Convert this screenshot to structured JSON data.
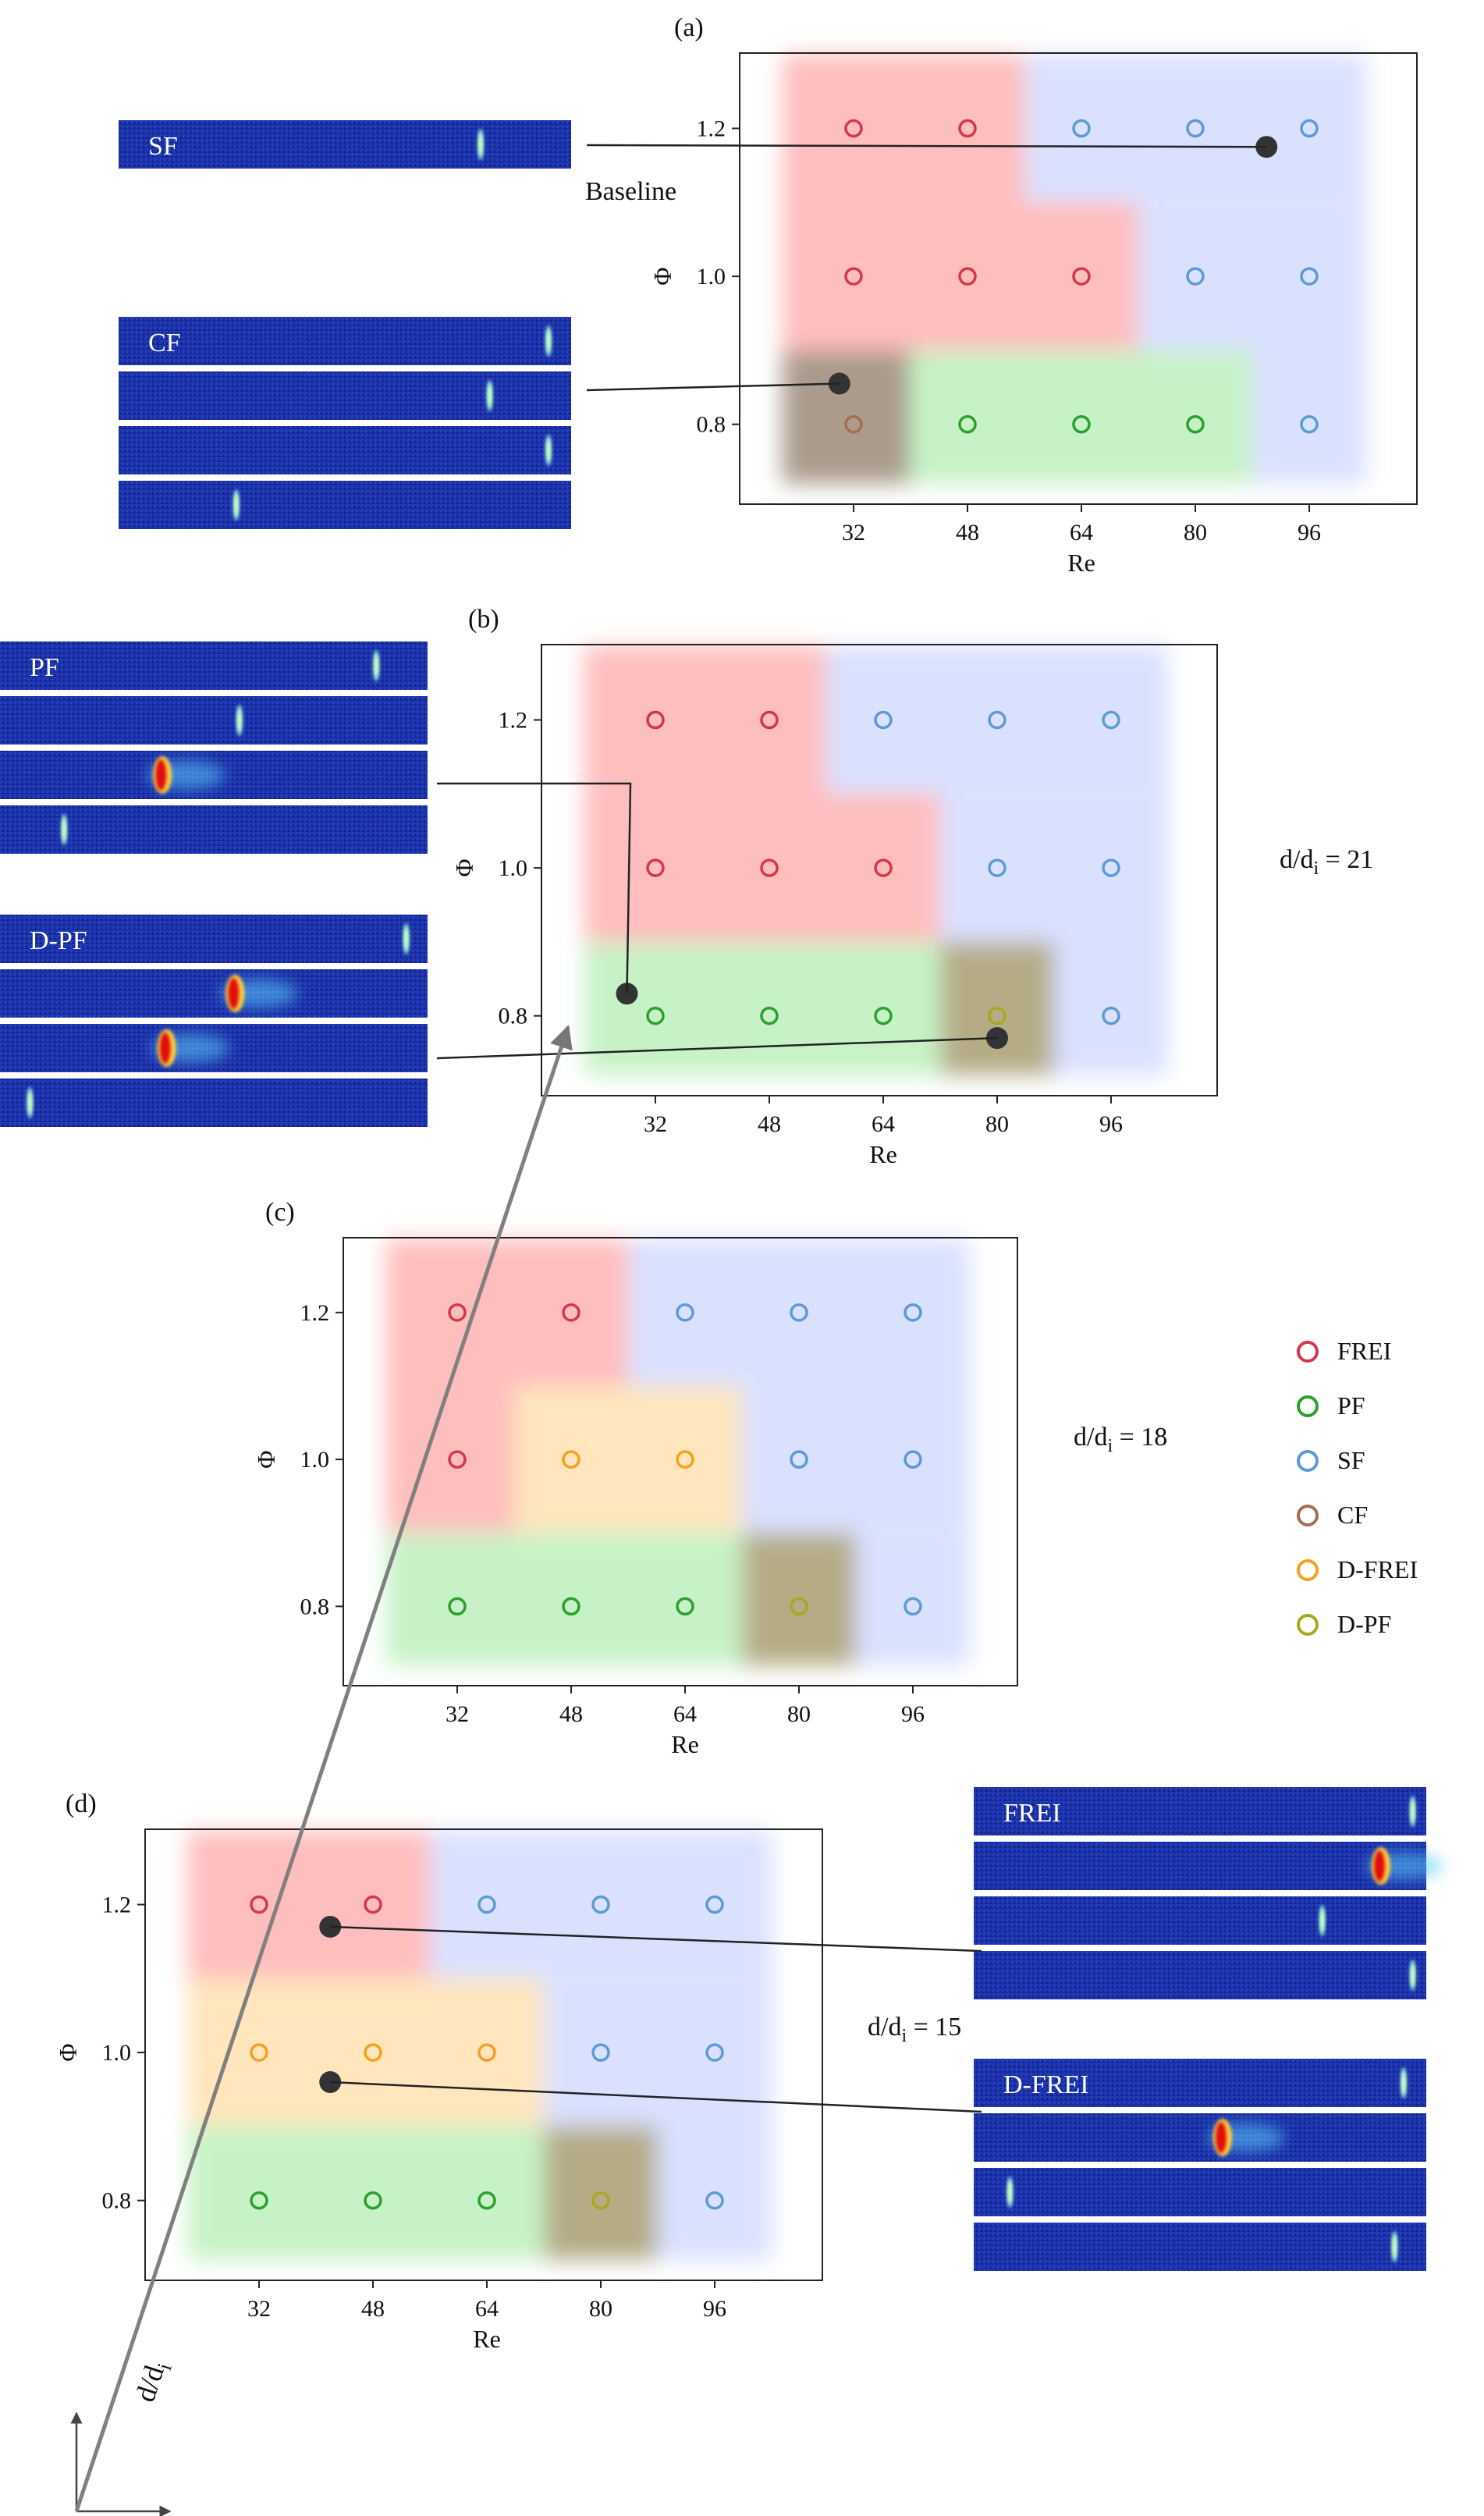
{
  "colors": {
    "FREI": "#d6364b",
    "PF": "#2ca02c",
    "SF": "#5b9bd5",
    "CF": "#a66d50",
    "D-FREI": "#f5a020",
    "D-PF": "#a8a820",
    "region_FREI": "#ffb3b3",
    "region_PF": "#bdf0bd",
    "region_SF": "#d4dcff",
    "region_CF": "#9c8a78",
    "region_D-FREI": "#ffe2b0",
    "region_D-PF": "#a89d72",
    "marker": "#333333",
    "stream_bg": "#1a2fa5"
  },
  "legend": {
    "items": [
      {
        "key": "FREI",
        "label": "FREI"
      },
      {
        "key": "PF",
        "label": "PF"
      },
      {
        "key": "SF",
        "label": "SF"
      },
      {
        "key": "CF",
        "label": "CF"
      },
      {
        "key": "D-FREI",
        "label": "D-FREI"
      },
      {
        "key": "D-PF",
        "label": "D-PF"
      }
    ]
  },
  "annotations": {
    "baseline": "Baseline",
    "axis_arrow_label": "d/d",
    "axis_arrow_subscript": "i"
  },
  "chart_data": [
    {
      "panel": "(a)",
      "type": "scatter",
      "xlabel": "Re",
      "ylabel": "Φ",
      "x_ticks": [
        "32",
        "48",
        "64",
        "80",
        "96"
      ],
      "y_ticks": [
        "0.8",
        "1.0",
        "1.2"
      ],
      "ratio_label": "",
      "points": [
        {
          "re": 32,
          "phi": 1.2,
          "regime": "FREI"
        },
        {
          "re": 48,
          "phi": 1.2,
          "regime": "FREI"
        },
        {
          "re": 64,
          "phi": 1.2,
          "regime": "SF"
        },
        {
          "re": 80,
          "phi": 1.2,
          "regime": "SF"
        },
        {
          "re": 96,
          "phi": 1.2,
          "regime": "SF"
        },
        {
          "re": 32,
          "phi": 1.0,
          "regime": "FREI"
        },
        {
          "re": 48,
          "phi": 1.0,
          "regime": "FREI"
        },
        {
          "re": 64,
          "phi": 1.0,
          "regime": "FREI"
        },
        {
          "re": 80,
          "phi": 1.0,
          "regime": "SF"
        },
        {
          "re": 96,
          "phi": 1.0,
          "regime": "SF"
        },
        {
          "re": 32,
          "phi": 0.8,
          "regime": "CF"
        },
        {
          "re": 48,
          "phi": 0.8,
          "regime": "PF"
        },
        {
          "re": 64,
          "phi": 0.8,
          "regime": "PF"
        },
        {
          "re": 80,
          "phi": 0.8,
          "regime": "PF"
        },
        {
          "re": 96,
          "phi": 0.8,
          "regime": "SF"
        }
      ],
      "regions": [
        {
          "regime": "FREI",
          "re": [
            22,
            56
          ],
          "phi": [
            1.1,
            1.3
          ]
        },
        {
          "regime": "FREI",
          "re": [
            22,
            72
          ],
          "phi": [
            0.9,
            1.1
          ]
        },
        {
          "regime": "SF",
          "re": [
            56,
            104
          ],
          "phi": [
            1.1,
            1.3
          ]
        },
        {
          "regime": "SF",
          "re": [
            72,
            104
          ],
          "phi": [
            0.9,
            1.1
          ]
        },
        {
          "regime": "SF",
          "re": [
            88,
            104
          ],
          "phi": [
            0.72,
            0.9
          ]
        },
        {
          "regime": "CF",
          "re": [
            22,
            40
          ],
          "phi": [
            0.72,
            0.9
          ]
        },
        {
          "regime": "PF",
          "re": [
            40,
            88
          ],
          "phi": [
            0.72,
            0.9
          ]
        }
      ],
      "markers": [
        {
          "re": 90,
          "phi": 1.175
        },
        {
          "re": 30,
          "phi": 0.855
        }
      ]
    },
    {
      "panel": "(b)",
      "type": "scatter",
      "xlabel": "Re",
      "ylabel": "Φ",
      "x_ticks": [
        "32",
        "48",
        "64",
        "80",
        "96"
      ],
      "y_ticks": [
        "0.8",
        "1.0",
        "1.2"
      ],
      "ratio_label": "d/d",
      "ratio_sub": "i",
      "ratio_value": " = 21",
      "points": [
        {
          "re": 32,
          "phi": 1.2,
          "regime": "FREI"
        },
        {
          "re": 48,
          "phi": 1.2,
          "regime": "FREI"
        },
        {
          "re": 64,
          "phi": 1.2,
          "regime": "SF"
        },
        {
          "re": 80,
          "phi": 1.2,
          "regime": "SF"
        },
        {
          "re": 96,
          "phi": 1.2,
          "regime": "SF"
        },
        {
          "re": 32,
          "phi": 1.0,
          "regime": "FREI"
        },
        {
          "re": 48,
          "phi": 1.0,
          "regime": "FREI"
        },
        {
          "re": 64,
          "phi": 1.0,
          "regime": "FREI"
        },
        {
          "re": 80,
          "phi": 1.0,
          "regime": "SF"
        },
        {
          "re": 96,
          "phi": 1.0,
          "regime": "SF"
        },
        {
          "re": 32,
          "phi": 0.8,
          "regime": "PF"
        },
        {
          "re": 48,
          "phi": 0.8,
          "regime": "PF"
        },
        {
          "re": 64,
          "phi": 0.8,
          "regime": "PF"
        },
        {
          "re": 80,
          "phi": 0.8,
          "regime": "D-PF"
        },
        {
          "re": 96,
          "phi": 0.8,
          "regime": "SF"
        }
      ],
      "regions": [
        {
          "regime": "FREI",
          "re": [
            22,
            56
          ],
          "phi": [
            1.1,
            1.3
          ]
        },
        {
          "regime": "FREI",
          "re": [
            22,
            72
          ],
          "phi": [
            0.9,
            1.1
          ]
        },
        {
          "regime": "SF",
          "re": [
            56,
            104
          ],
          "phi": [
            1.1,
            1.3
          ]
        },
        {
          "regime": "SF",
          "re": [
            72,
            104
          ],
          "phi": [
            0.9,
            1.1
          ]
        },
        {
          "regime": "SF",
          "re": [
            88,
            104
          ],
          "phi": [
            0.72,
            0.9
          ]
        },
        {
          "regime": "PF",
          "re": [
            22,
            72
          ],
          "phi": [
            0.72,
            0.9
          ]
        },
        {
          "regime": "D-PF",
          "re": [
            72,
            88
          ],
          "phi": [
            0.72,
            0.9
          ]
        }
      ],
      "markers": [
        {
          "re": 28,
          "phi": 0.83
        },
        {
          "re": 80,
          "phi": 0.77
        }
      ]
    },
    {
      "panel": "(c)",
      "type": "scatter",
      "xlabel": "Re",
      "ylabel": "Φ",
      "x_ticks": [
        "32",
        "48",
        "64",
        "80",
        "96"
      ],
      "y_ticks": [
        "0.8",
        "1.0",
        "1.2"
      ],
      "ratio_label": "d/d",
      "ratio_sub": "i",
      "ratio_value": " = 18",
      "points": [
        {
          "re": 32,
          "phi": 1.2,
          "regime": "FREI"
        },
        {
          "re": 48,
          "phi": 1.2,
          "regime": "FREI"
        },
        {
          "re": 64,
          "phi": 1.2,
          "regime": "SF"
        },
        {
          "re": 80,
          "phi": 1.2,
          "regime": "SF"
        },
        {
          "re": 96,
          "phi": 1.2,
          "regime": "SF"
        },
        {
          "re": 32,
          "phi": 1.0,
          "regime": "FREI"
        },
        {
          "re": 48,
          "phi": 1.0,
          "regime": "D-FREI"
        },
        {
          "re": 64,
          "phi": 1.0,
          "regime": "D-FREI"
        },
        {
          "re": 80,
          "phi": 1.0,
          "regime": "SF"
        },
        {
          "re": 96,
          "phi": 1.0,
          "regime": "SF"
        },
        {
          "re": 32,
          "phi": 0.8,
          "regime": "PF"
        },
        {
          "re": 48,
          "phi": 0.8,
          "regime": "PF"
        },
        {
          "re": 64,
          "phi": 0.8,
          "regime": "PF"
        },
        {
          "re": 80,
          "phi": 0.8,
          "regime": "D-PF"
        },
        {
          "re": 96,
          "phi": 0.8,
          "regime": "SF"
        }
      ],
      "regions": [
        {
          "regime": "FREI",
          "re": [
            22,
            56
          ],
          "phi": [
            1.1,
            1.3
          ]
        },
        {
          "regime": "FREI",
          "re": [
            22,
            40
          ],
          "phi": [
            0.9,
            1.1
          ]
        },
        {
          "regime": "D-FREI",
          "re": [
            40,
            72
          ],
          "phi": [
            0.9,
            1.1
          ]
        },
        {
          "regime": "SF",
          "re": [
            56,
            104
          ],
          "phi": [
            1.1,
            1.3
          ]
        },
        {
          "regime": "SF",
          "re": [
            72,
            104
          ],
          "phi": [
            0.9,
            1.1
          ]
        },
        {
          "regime": "SF",
          "re": [
            88,
            104
          ],
          "phi": [
            0.72,
            0.9
          ]
        },
        {
          "regime": "PF",
          "re": [
            22,
            72
          ],
          "phi": [
            0.72,
            0.9
          ]
        },
        {
          "regime": "D-PF",
          "re": [
            72,
            88
          ],
          "phi": [
            0.72,
            0.9
          ]
        }
      ],
      "markers": []
    },
    {
      "panel": "(d)",
      "type": "scatter",
      "xlabel": "Re",
      "ylabel": "Φ",
      "x_ticks": [
        "32",
        "48",
        "64",
        "80",
        "96"
      ],
      "y_ticks": [
        "0.8",
        "1.0",
        "1.2"
      ],
      "ratio_label": "d/d",
      "ratio_sub": "i",
      "ratio_value": " = 15",
      "points": [
        {
          "re": 32,
          "phi": 1.2,
          "regime": "FREI"
        },
        {
          "re": 48,
          "phi": 1.2,
          "regime": "FREI"
        },
        {
          "re": 64,
          "phi": 1.2,
          "regime": "SF"
        },
        {
          "re": 80,
          "phi": 1.2,
          "regime": "SF"
        },
        {
          "re": 96,
          "phi": 1.2,
          "regime": "SF"
        },
        {
          "re": 32,
          "phi": 1.0,
          "regime": "D-FREI"
        },
        {
          "re": 48,
          "phi": 1.0,
          "regime": "D-FREI"
        },
        {
          "re": 64,
          "phi": 1.0,
          "regime": "D-FREI"
        },
        {
          "re": 80,
          "phi": 1.0,
          "regime": "SF"
        },
        {
          "re": 96,
          "phi": 1.0,
          "regime": "SF"
        },
        {
          "re": 32,
          "phi": 0.8,
          "regime": "PF"
        },
        {
          "re": 48,
          "phi": 0.8,
          "regime": "PF"
        },
        {
          "re": 64,
          "phi": 0.8,
          "regime": "PF"
        },
        {
          "re": 80,
          "phi": 0.8,
          "regime": "D-PF"
        },
        {
          "re": 96,
          "phi": 0.8,
          "regime": "SF"
        }
      ],
      "regions": [
        {
          "regime": "FREI",
          "re": [
            22,
            56
          ],
          "phi": [
            1.1,
            1.3
          ]
        },
        {
          "regime": "D-FREI",
          "re": [
            22,
            72
          ],
          "phi": [
            0.9,
            1.1
          ]
        },
        {
          "regime": "SF",
          "re": [
            56,
            104
          ],
          "phi": [
            1.1,
            1.3
          ]
        },
        {
          "regime": "SF",
          "re": [
            72,
            104
          ],
          "phi": [
            0.9,
            1.1
          ]
        },
        {
          "regime": "SF",
          "re": [
            88,
            104
          ],
          "phi": [
            0.72,
            0.9
          ]
        },
        {
          "regime": "PF",
          "re": [
            22,
            72
          ],
          "phi": [
            0.72,
            0.9
          ]
        },
        {
          "regime": "D-PF",
          "re": [
            72,
            88
          ],
          "phi": [
            0.72,
            0.9
          ]
        }
      ],
      "markers": [
        {
          "re": 42,
          "phi": 1.17
        },
        {
          "re": 42,
          "phi": 0.96
        }
      ]
    }
  ],
  "image_groups": [
    {
      "id": "SF",
      "label": "SF",
      "flames": [
        {
          "pos": 0.8,
          "hot": 0.1
        }
      ]
    },
    {
      "id": "CF",
      "label": "CF",
      "flames": [
        {
          "pos": 0.95,
          "hot": 0.2
        },
        {
          "pos": 0.82,
          "hot": 0.1
        },
        {
          "pos": 0.95,
          "hot": 0.2
        },
        {
          "pos": 0.26,
          "hot": 0.1
        }
      ]
    },
    {
      "id": "PF",
      "label": "PF",
      "flames": [
        {
          "pos": 0.88,
          "hot": 0.1
        },
        {
          "pos": 0.56,
          "hot": 0.2
        },
        {
          "pos": 0.38,
          "hot": 0.8
        },
        {
          "pos": 0.15,
          "hot": 0.1
        }
      ]
    },
    {
      "id": "D-PF",
      "label": "D-PF",
      "flames": [
        {
          "pos": 0.95,
          "hot": 0.1
        },
        {
          "pos": 0.55,
          "hot": 1.0
        },
        {
          "pos": 0.39,
          "hot": 0.9
        },
        {
          "pos": 0.07,
          "hot": 0.1
        }
      ]
    },
    {
      "id": "FREI",
      "label": "FREI",
      "flames": [
        {
          "pos": 0.97,
          "hot": 0.1
        },
        {
          "pos": 0.9,
          "hot": 0.8
        },
        {
          "pos": 0.77,
          "hot": 0.1
        },
        {
          "pos": 0.97,
          "hot": 0.1
        }
      ]
    },
    {
      "id": "D-FREI",
      "label": "D-FREI",
      "flames": [
        {
          "pos": 0.95,
          "hot": 0.1
        },
        {
          "pos": 0.55,
          "hot": 0.9
        },
        {
          "pos": 0.08,
          "hot": 0.1
        },
        {
          "pos": 0.93,
          "hot": 0.1
        }
      ]
    }
  ]
}
